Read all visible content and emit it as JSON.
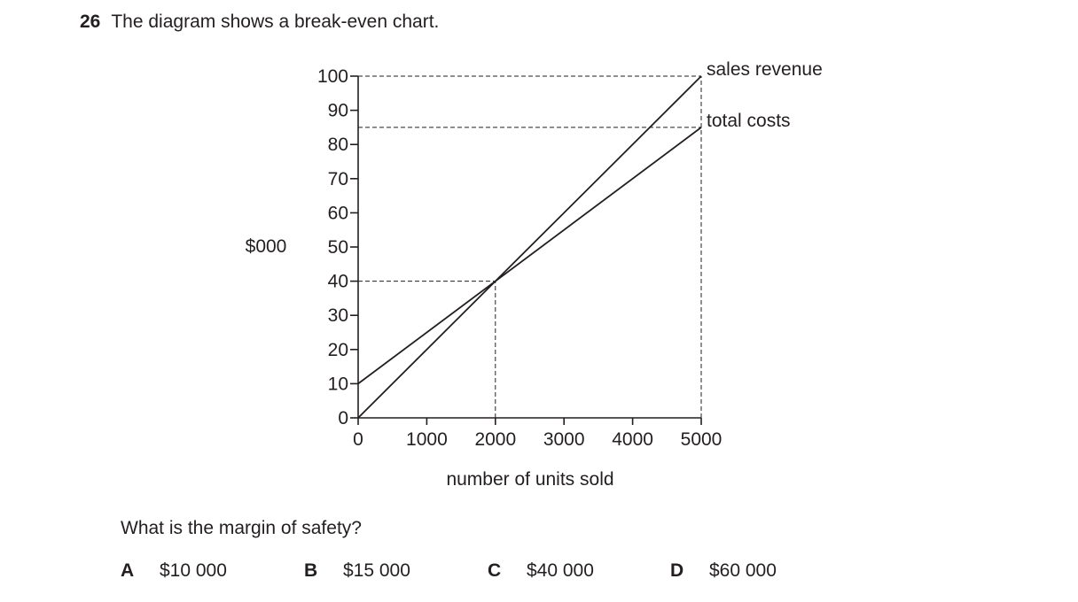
{
  "question": {
    "number": "26",
    "stem": "The diagram shows a break-even chart.",
    "ask": "What is the margin of safety?",
    "options": [
      {
        "letter": "A",
        "text": "$10 000"
      },
      {
        "letter": "B",
        "text": "$15 000"
      },
      {
        "letter": "C",
        "text": "$40 000"
      },
      {
        "letter": "D",
        "text": "$60 000"
      }
    ]
  },
  "chart_data": {
    "type": "line",
    "xlabel": "number of units sold",
    "ylabel": "$000",
    "xlim": [
      0,
      5000
    ],
    "ylim": [
      0,
      100
    ],
    "x_ticks": [
      0,
      1000,
      2000,
      3000,
      4000,
      5000
    ],
    "y_ticks": [
      0,
      10,
      20,
      30,
      40,
      50,
      60,
      70,
      80,
      90,
      100
    ],
    "grid": false,
    "series": [
      {
        "name": "sales revenue",
        "x": [
          0,
          5000
        ],
        "y": [
          0,
          100
        ]
      },
      {
        "name": "total costs",
        "x": [
          0,
          5000
        ],
        "y": [
          10,
          85
        ]
      }
    ],
    "reference_lines": [
      {
        "x": [
          0,
          5000
        ],
        "y": [
          100,
          100
        ]
      },
      {
        "x": [
          0,
          5000
        ],
        "y": [
          85,
          85
        ]
      },
      {
        "x": [
          0,
          2000
        ],
        "y": [
          40,
          40
        ]
      },
      {
        "x": [
          2000,
          2000
        ],
        "y": [
          0,
          40
        ]
      },
      {
        "x": [
          5000,
          5000
        ],
        "y": [
          0,
          100
        ]
      }
    ],
    "colors": {
      "ink": "#231f20"
    }
  }
}
